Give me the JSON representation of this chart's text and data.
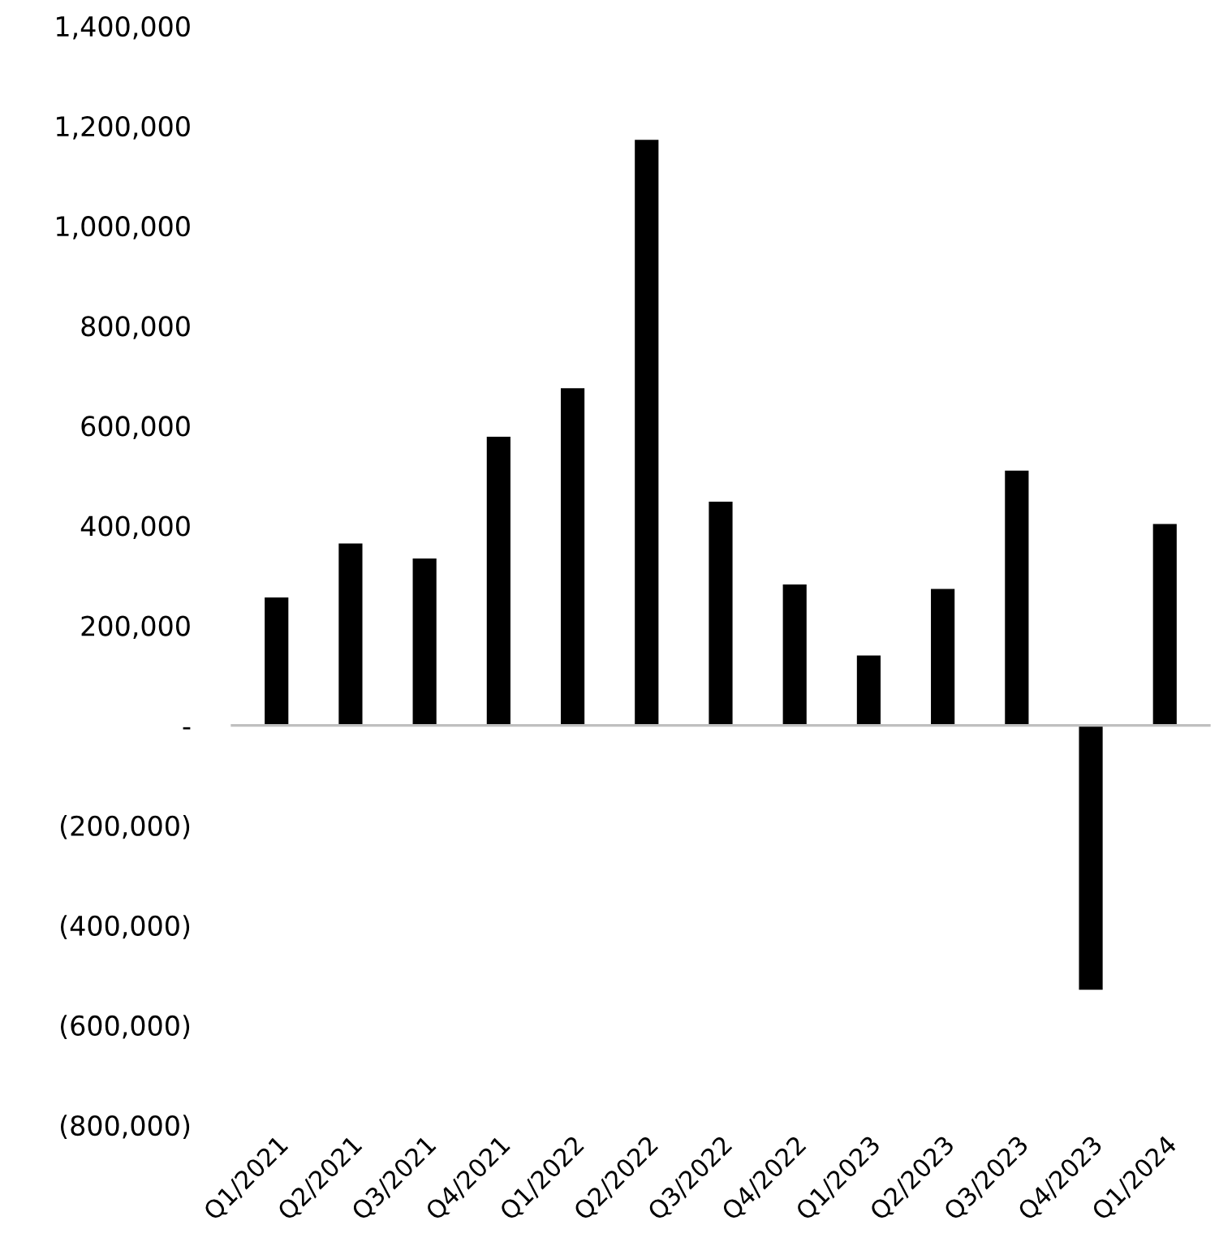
{
  "chart_data": {
    "type": "bar",
    "categories": [
      "Q1/2021",
      "Q2/2021",
      "Q3/2021",
      "Q4/2021",
      "Q1/2022",
      "Q2/2022",
      "Q3/2022",
      "Q4/2022",
      "Q1/2023",
      "Q2/2023",
      "Q3/2023",
      "Q4/2023",
      "Q1/2024"
    ],
    "values": [
      256000,
      364000,
      334000,
      578000,
      675000,
      1172000,
      448000,
      282000,
      140000,
      273000,
      510000,
      -529000,
      403000
    ],
    "color": "#000000",
    "ylim": [
      -800000,
      1400000
    ],
    "yticks": [
      {
        "value": -800000,
        "label": "(800,000)"
      },
      {
        "value": -600000,
        "label": "(600,000)"
      },
      {
        "value": -400000,
        "label": "(400,000)"
      },
      {
        "value": -200000,
        "label": "(200,000)"
      },
      {
        "value": 0,
        "label": "-"
      },
      {
        "value": 200000,
        "label": "200,000"
      },
      {
        "value": 400000,
        "label": "400,000"
      },
      {
        "value": 600000,
        "label": "600,000"
      },
      {
        "value": 800000,
        "label": "800,000"
      },
      {
        "value": 1000000,
        "label": "1,000,000"
      },
      {
        "value": 1200000,
        "label": "1,200,000"
      },
      {
        "value": 1400000,
        "label": "1,400,000"
      }
    ],
    "legend": false
  }
}
